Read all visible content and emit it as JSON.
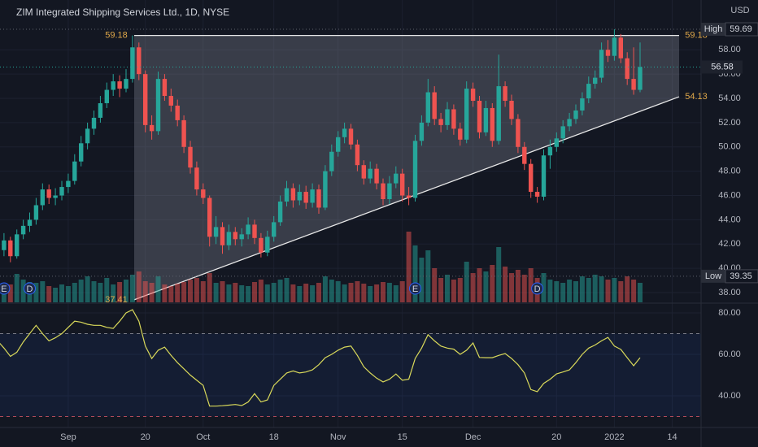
{
  "chart_data": [
    {
      "type": "candlestick",
      "title": "ZIM Integrated Shipping Services Ltd., 1D, NYSE",
      "currency": "USD",
      "categories": [
        null,
        null,
        null,
        null,
        null,
        null,
        null,
        null,
        null,
        null,
        null,
        "Sep",
        null,
        null,
        null,
        null,
        null,
        null,
        null,
        null,
        null,
        null,
        null,
        "20",
        null,
        null,
        null,
        null,
        null,
        null,
        null,
        null,
        "Oct",
        null,
        null,
        null,
        null,
        null,
        null,
        null,
        null,
        null,
        null,
        "18",
        null,
        null,
        null,
        null,
        null,
        null,
        null,
        null,
        null,
        "Nov",
        null,
        null,
        null,
        null,
        null,
        null,
        null,
        null,
        null,
        "15",
        null,
        null,
        null,
        null,
        null,
        null,
        null,
        null,
        null,
        null,
        "Dec",
        null,
        null,
        null,
        null,
        null,
        null,
        null,
        null,
        null,
        null,
        null,
        null,
        "20",
        null,
        null,
        null,
        null,
        null,
        null,
        null,
        null,
        "2022",
        null,
        null,
        null,
        null,
        null,
        null,
        null,
        null,
        "14"
      ],
      "ohlc": [
        [
          40.8,
          42.0,
          39.35,
          41.5
        ],
        [
          41.5,
          42.9,
          41.0,
          42.3
        ],
        [
          42.3,
          42.6,
          40.5,
          41.0
        ],
        [
          41.0,
          43.2,
          40.8,
          42.8
        ],
        [
          42.8,
          44.0,
          42.4,
          43.5
        ],
        [
          43.5,
          44.6,
          43.0,
          44.0
        ],
        [
          44.0,
          45.8,
          43.6,
          45.2
        ],
        [
          45.2,
          47.0,
          44.8,
          46.5
        ],
        [
          46.5,
          46.9,
          45.3,
          45.8
        ],
        [
          45.8,
          46.6,
          45.2,
          46.0
        ],
        [
          46.0,
          47.2,
          45.6,
          46.7
        ],
        [
          46.7,
          47.8,
          46.2,
          47.2
        ],
        [
          47.2,
          49.4,
          46.9,
          48.8
        ],
        [
          48.8,
          50.9,
          48.4,
          50.3
        ],
        [
          50.3,
          52.0,
          49.8,
          51.5
        ],
        [
          51.5,
          53.0,
          51.0,
          52.4
        ],
        [
          52.4,
          54.2,
          52.0,
          53.6
        ],
        [
          53.6,
          55.3,
          53.2,
          54.7
        ],
        [
          54.7,
          56.0,
          54.2,
          55.4
        ],
        [
          55.4,
          55.9,
          54.1,
          54.8
        ],
        [
          54.8,
          56.4,
          54.5,
          55.6
        ],
        [
          55.6,
          59.18,
          55.3,
          58.2
        ],
        [
          58.2,
          58.6,
          55.5,
          56.0
        ],
        [
          56.0,
          56.3,
          51.2,
          51.8
        ],
        [
          51.8,
          52.6,
          50.6,
          51.3
        ],
        [
          51.3,
          56.2,
          51.0,
          55.6
        ],
        [
          55.6,
          56.0,
          53.8,
          54.2
        ],
        [
          54.2,
          54.8,
          52.9,
          53.4
        ],
        [
          53.4,
          53.9,
          51.7,
          52.2
        ],
        [
          52.2,
          52.6,
          49.5,
          50.0
        ],
        [
          50.0,
          50.5,
          47.8,
          48.3
        ],
        [
          48.3,
          48.8,
          46.0,
          46.5
        ],
        [
          46.5,
          47.0,
          45.3,
          45.8
        ],
        [
          45.8,
          46.0,
          41.8,
          42.6
        ],
        [
          42.6,
          44.3,
          42.0,
          43.4
        ],
        [
          43.4,
          43.8,
          41.2,
          41.9
        ],
        [
          41.9,
          43.6,
          41.5,
          43.0
        ],
        [
          43.0,
          43.4,
          41.9,
          42.4
        ],
        [
          42.4,
          43.3,
          41.8,
          42.8
        ],
        [
          42.8,
          44.2,
          42.4,
          43.6
        ],
        [
          43.6,
          44.0,
          42.0,
          42.5
        ],
        [
          42.5,
          42.9,
          40.9,
          41.3
        ],
        [
          41.3,
          43.1,
          41.0,
          42.6
        ],
        [
          42.6,
          44.3,
          42.2,
          43.8
        ],
        [
          43.8,
          46.0,
          43.5,
          45.5
        ],
        [
          45.5,
          47.2,
          45.1,
          46.6
        ],
        [
          46.6,
          47.0,
          45.0,
          45.6
        ],
        [
          45.6,
          46.9,
          45.2,
          46.3
        ],
        [
          46.3,
          46.8,
          44.9,
          45.4
        ],
        [
          45.4,
          47.0,
          45.0,
          46.5
        ],
        [
          46.5,
          46.9,
          44.5,
          45.0
        ],
        [
          45.0,
          48.5,
          44.8,
          48.0
        ],
        [
          48.0,
          50.2,
          47.6,
          49.6
        ],
        [
          49.6,
          51.3,
          49.2,
          50.8
        ],
        [
          50.8,
          52.0,
          50.3,
          51.5
        ],
        [
          51.5,
          51.9,
          49.8,
          50.2
        ],
        [
          50.2,
          50.6,
          48.0,
          48.5
        ],
        [
          48.5,
          48.9,
          46.9,
          47.4
        ],
        [
          47.4,
          48.8,
          47.0,
          48.2
        ],
        [
          48.2,
          48.6,
          46.5,
          47.0
        ],
        [
          47.0,
          47.4,
          45.2,
          45.7
        ],
        [
          45.7,
          47.6,
          45.3,
          47.0
        ],
        [
          47.0,
          48.4,
          46.6,
          47.8
        ],
        [
          47.8,
          48.2,
          45.5,
          46.0
        ],
        [
          46.0,
          46.7,
          45.2,
          45.8
        ],
        [
          45.8,
          51.0,
          45.5,
          50.5
        ],
        [
          50.5,
          52.6,
          50.1,
          52.0
        ],
        [
          52.0,
          55.6,
          51.7,
          54.5
        ],
        [
          54.5,
          55.0,
          51.8,
          52.3
        ],
        [
          52.3,
          52.8,
          51.2,
          51.8
        ],
        [
          51.8,
          53.7,
          51.4,
          53.1
        ],
        [
          53.1,
          53.5,
          51.0,
          51.5
        ],
        [
          51.5,
          52.0,
          50.1,
          50.6
        ],
        [
          50.6,
          55.4,
          50.3,
          54.8
        ],
        [
          54.8,
          55.3,
          53.3,
          53.8
        ],
        [
          53.8,
          54.2,
          50.7,
          51.2
        ],
        [
          51.2,
          53.8,
          50.9,
          53.2
        ],
        [
          53.2,
          53.6,
          50.0,
          50.5
        ],
        [
          50.5,
          57.6,
          50.2,
          55.0
        ],
        [
          55.0,
          55.4,
          53.3,
          53.8
        ],
        [
          53.8,
          54.3,
          51.8,
          52.3
        ],
        [
          52.3,
          52.7,
          49.5,
          50.0
        ],
        [
          50.0,
          50.4,
          48.1,
          48.6
        ],
        [
          48.6,
          49.0,
          45.8,
          46.3
        ],
        [
          46.3,
          46.7,
          45.4,
          45.9
        ],
        [
          45.9,
          49.8,
          45.6,
          49.3
        ],
        [
          49.3,
          50.6,
          48.2,
          50.0
        ],
        [
          50.0,
          51.2,
          49.6,
          50.7
        ],
        [
          50.7,
          52.2,
          50.3,
          51.7
        ],
        [
          51.7,
          52.8,
          51.3,
          52.3
        ],
        [
          52.3,
          53.5,
          51.9,
          53.0
        ],
        [
          53.0,
          54.5,
          52.6,
          54.0
        ],
        [
          54.0,
          55.8,
          53.6,
          55.2
        ],
        [
          55.2,
          56.3,
          54.8,
          55.7
        ],
        [
          55.7,
          58.6,
          55.3,
          58.0
        ],
        [
          58.0,
          58.8,
          57.0,
          57.5
        ],
        [
          57.5,
          59.69,
          57.1,
          59.0
        ],
        [
          59.0,
          59.3,
          56.9,
          57.3
        ],
        [
          57.3,
          57.8,
          55.1,
          55.6
        ],
        [
          55.6,
          58.2,
          54.3,
          54.7
        ],
        [
          54.7,
          58.6,
          54.5,
          56.58
        ],
        null,
        null,
        null,
        null,
        null
      ],
      "volume": [
        3.0,
        2.4,
        2.2,
        3.5,
        2.8,
        2.5,
        2.4,
        2.6,
        2.0,
        1.8,
        2.2,
        2.0,
        2.4,
        2.8,
        3.2,
        2.6,
        2.4,
        3.0,
        2.2,
        2.5,
        2.8,
        3.4,
        3.8,
        2.6,
        2.4,
        3.2,
        2.2,
        2.0,
        2.3,
        2.5,
        2.8,
        3.0,
        2.6,
        3.6,
        2.4,
        2.6,
        2.2,
        2.4,
        2.1,
        2.0,
        2.5,
        2.8,
        2.2,
        2.4,
        2.8,
        3.0,
        2.2,
        2.0,
        2.3,
        2.1,
        2.4,
        3.2,
        2.8,
        2.6,
        2.2,
        2.4,
        2.6,
        2.3,
        2.0,
        2.2,
        2.5,
        2.4,
        2.1,
        2.6,
        8.7,
        7.0,
        5.5,
        6.4,
        4.2,
        3.0,
        3.4,
        2.8,
        3.0,
        5.0,
        3.6,
        4.2,
        3.8,
        4.6,
        6.8,
        4.4,
        3.6,
        4.0,
        3.4,
        4.2,
        3.0,
        3.6,
        2.8,
        2.6,
        2.4,
        2.8,
        2.6,
        3.2,
        3.0,
        3.4,
        3.2,
        2.8,
        3.0,
        2.6,
        3.2,
        2.8,
        2.4,
        null,
        null,
        null,
        null,
        null
      ],
      "up_color": "#26a69a",
      "down_color": "#ef5350",
      "ylim": [
        37.2,
        62.1
      ],
      "yticks": [
        {
          "value": 38,
          "label": "38.00"
        },
        {
          "value": 40,
          "label": "40.00"
        },
        {
          "value": 42,
          "label": "42.00"
        },
        {
          "value": 44,
          "label": "44.00"
        },
        {
          "value": 46,
          "label": "46.00"
        },
        {
          "value": 48,
          "label": "48.00"
        },
        {
          "value": 50,
          "label": "50.00"
        },
        {
          "value": 52,
          "label": "52.00"
        },
        {
          "value": 54,
          "label": "54.00"
        },
        {
          "value": 56,
          "label": "56.00"
        },
        {
          "value": 58,
          "label": "58.00"
        }
      ],
      "grid": true,
      "high": {
        "label": "High",
        "value": 59.69
      },
      "low": {
        "label": "Low",
        "value": 39.35
      },
      "last": 56.58,
      "resistance": 59.18,
      "support": [
        37.41,
        54.13
      ],
      "events": [
        "E",
        "D",
        "E",
        "D"
      ]
    },
    {
      "type": "line",
      "values": [
        66.5,
        63,
        59,
        61,
        66,
        70,
        74,
        70,
        66.5,
        68,
        70,
        73,
        76,
        75.5,
        74.5,
        74,
        74,
        73,
        72.5,
        76,
        80,
        81.5,
        76,
        64,
        58,
        62,
        63.5,
        59.5,
        56,
        53,
        50,
        47.5,
        45,
        35,
        35,
        35.2,
        35.5,
        35.8,
        35.3,
        37,
        41,
        37,
        38,
        45,
        48,
        51,
        52,
        51,
        51.5,
        52.5,
        55,
        58.4,
        60,
        62,
        63.5,
        64,
        59.5,
        54,
        51,
        48.5,
        46.7,
        48,
        50.5,
        47.5,
        48,
        58,
        63,
        69.5,
        66.5,
        64,
        63,
        62.5,
        60,
        62,
        65.5,
        58.5,
        58.4,
        58.4,
        59.5,
        60.4,
        58,
        55,
        51,
        43,
        42,
        46,
        48,
        50.6,
        51.5,
        52.5,
        56,
        60,
        63,
        64.5,
        66.5,
        68.2,
        64,
        62.4,
        58.4,
        54.5,
        58.4,
        null,
        null,
        null,
        null,
        null
      ],
      "color": "#d9d95a",
      "ylim": [
        25.1,
        84.3
      ],
      "yticks": [
        {
          "value": 40,
          "label": "40.00"
        },
        {
          "value": 60,
          "label": "60.00"
        },
        {
          "value": 80,
          "label": "80.00"
        }
      ],
      "levels": [
        30,
        70
      ]
    }
  ]
}
